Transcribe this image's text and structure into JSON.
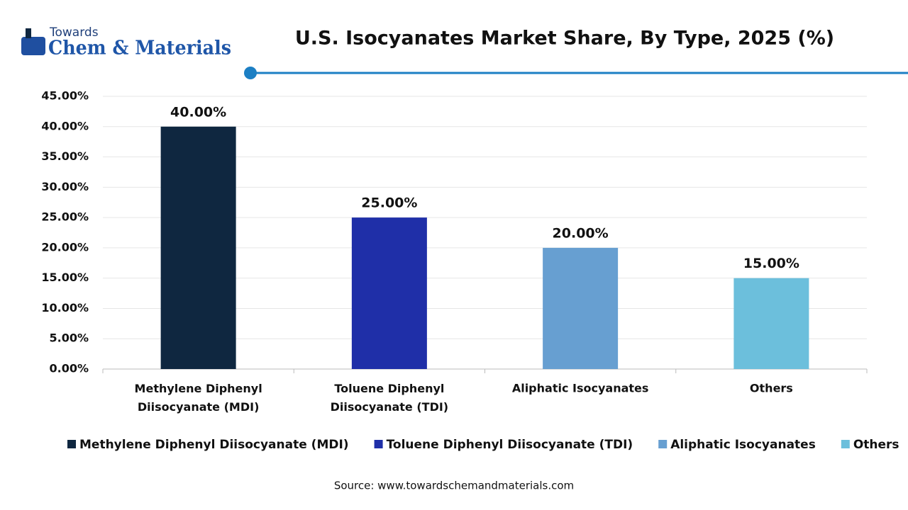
{
  "logo": {
    "top": "Towards",
    "bottom": "Chem & Materials"
  },
  "chart_data": {
    "type": "bar",
    "title": "U.S. Isocyanates Market Share, By Type, 2025 (%)",
    "categories": [
      "Methylene Diphenyl Diisocyanate (MDI)",
      "Toluene Diphenyl Diisocyanate (TDI)",
      "Aliphatic Isocyanates",
      "Others"
    ],
    "values": [
      40,
      25,
      20,
      15
    ],
    "value_labels": [
      "40.00%",
      "25.00%",
      "20.00%",
      "15.00%"
    ],
    "colors": [
      "#0f2740",
      "#1f2fa8",
      "#679fd1",
      "#6cbfdc"
    ],
    "ylim": [
      0,
      45
    ],
    "yticks": [
      {
        "value": 0,
        "label": "0.00%"
      },
      {
        "value": 5,
        "label": "5.00%"
      },
      {
        "value": 10,
        "label": "10.00%"
      },
      {
        "value": 15,
        "label": "15.00%"
      },
      {
        "value": 20,
        "label": "20.00%"
      },
      {
        "value": 25,
        "label": "25.00%"
      },
      {
        "value": 30,
        "label": "30.00%"
      },
      {
        "value": 35,
        "label": "35.00%"
      },
      {
        "value": 40,
        "label": "40.00%"
      },
      {
        "value": 45,
        "label": "45.00%"
      }
    ],
    "grid": true,
    "legend": "bottom",
    "source": "Source: www.towardschemandmaterials.com"
  }
}
